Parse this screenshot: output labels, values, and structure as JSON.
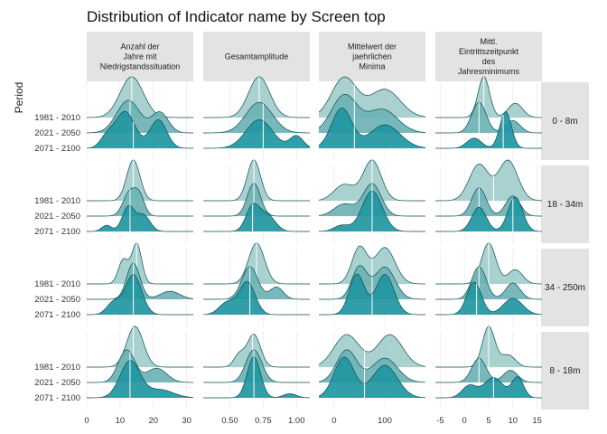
{
  "chart_data": {
    "type": "ridgeline",
    "title": "Distribution of Indicator name by Screen top",
    "ylabel": "Period",
    "periods": [
      "1981 - 2010",
      "2021 - 2050",
      "2071 - 2100"
    ],
    "columns": [
      {
        "name": "Anzahl der Jahre mit Niedrigstandssituation",
        "strip_lines": [
          "Anzahl der",
          "Jahre mit",
          "Niedrigstandssituation"
        ],
        "xlim": [
          0,
          32
        ],
        "ticks": [
          0,
          10,
          20,
          30
        ],
        "tick_labels": [
          "0",
          "10",
          "20",
          "30"
        ]
      },
      {
        "name": "Gesamtamplitude",
        "strip_lines": [
          "Gesamtamplitude"
        ],
        "xlim": [
          0.3,
          1.1
        ],
        "ticks": [
          0.5,
          0.75,
          1.0
        ],
        "tick_labels": [
          "0.50",
          "0.75",
          "1.00"
        ]
      },
      {
        "name": "Mittelwert der jaehrlichen Minima",
        "strip_lines": [
          "Mittelwert der",
          "jaehrlichen",
          "Minima"
        ],
        "xlim": [
          -30,
          180
        ],
        "ticks": [
          0,
          100
        ],
        "tick_labels": [
          "0",
          "100"
        ]
      },
      {
        "name": "Mittl. Eintrittszeitpunkt des Jahresminimums",
        "strip_lines": [
          "Mittl.",
          "Eintrittszeitpunkt",
          "des",
          "Jahresminimums"
        ],
        "xlim": [
          -6,
          16
        ],
        "ticks": [
          -5,
          0,
          5,
          10,
          15
        ],
        "tick_labels": [
          "-5",
          "0",
          "5",
          "10",
          "15"
        ]
      }
    ],
    "rows": [
      {
        "name": "0 - 8m"
      },
      {
        "name": "18 - 34m"
      },
      {
        "name": "34 - 250m"
      },
      {
        "name": "8 - 18m"
      }
    ],
    "colors": {
      "1981 - 2010": "#a2cdcc",
      "2021 - 2050": "#6cb2b4",
      "2071 - 2100": "#2196a1",
      "outline": "#0d4d55",
      "strip_bg": "#e3e3e3",
      "grid": "#ebebeb",
      "median_line": "#ffffff"
    },
    "densities": [
      [
        [
          {
            "median": 13.5,
            "comps": [
              [
                13.5,
                3.5,
                1.0
              ]
            ]
          },
          {
            "median": 13.0,
            "comps": [
              [
                12.5,
                3.5,
                0.8
              ],
              [
                22.0,
                2.5,
                0.5
              ]
            ]
          },
          {
            "median": 14.0,
            "comps": [
              [
                11.5,
                3.0,
                0.9
              ],
              [
                21.5,
                2.5,
                0.7
              ],
              [
                6.0,
                2.0,
                0.25
              ]
            ]
          }
        ],
        [
          {
            "median": 0.72,
            "comps": [
              [
                0.72,
                0.08,
                1.0
              ]
            ]
          },
          {
            "median": 0.75,
            "comps": [
              [
                0.72,
                0.1,
                0.75
              ]
            ]
          },
          {
            "median": 0.75,
            "comps": [
              [
                0.72,
                0.1,
                0.7
              ],
              [
                1.0,
                0.05,
                0.3
              ]
            ]
          }
        ],
        [
          {
            "median": 40,
            "comps": [
              [
                20,
                25,
                0.85
              ],
              [
                100,
                30,
                0.6
              ]
            ]
          },
          {
            "median": 40,
            "comps": [
              [
                20,
                25,
                0.8
              ],
              [
                95,
                30,
                0.5
              ]
            ]
          },
          {
            "median": 40,
            "comps": [
              [
                15,
                20,
                0.85
              ],
              [
                100,
                30,
                0.5
              ]
            ]
          }
        ],
        [
          {
            "median": 4.0,
            "comps": [
              [
                4.0,
                1.2,
                1.0
              ],
              [
                10.5,
                1.5,
                0.35
              ]
            ]
          },
          {
            "median": 3.0,
            "comps": [
              [
                3.0,
                1.5,
                0.75
              ],
              [
                10.0,
                1.5,
                0.3
              ]
            ]
          },
          {
            "median": 8.0,
            "comps": [
              [
                8.5,
                1.2,
                0.9
              ],
              [
                2.0,
                1.5,
                0.25
              ]
            ]
          }
        ]
      ],
      [
        [
          {
            "median": 14.0,
            "comps": [
              [
                14.0,
                2.0,
                1.0
              ]
            ]
          },
          {
            "median": 13.0,
            "comps": [
              [
                13.0,
                2.0,
                0.6
              ],
              [
                16.0,
                1.5,
                0.4
              ]
            ]
          },
          {
            "median": 13.0,
            "comps": [
              [
                12.5,
                1.8,
                0.6
              ],
              [
                17.0,
                2.0,
                0.4
              ],
              [
                6.0,
                1.5,
                0.15
              ]
            ]
          }
        ],
        [
          {
            "median": 0.68,
            "comps": [
              [
                0.68,
                0.05,
                1.0
              ]
            ]
          },
          {
            "median": 0.68,
            "comps": [
              [
                0.68,
                0.05,
                0.8
              ]
            ]
          },
          {
            "median": 0.67,
            "comps": [
              [
                0.67,
                0.05,
                0.6
              ],
              [
                0.78,
                0.06,
                0.4
              ]
            ]
          }
        ],
        [
          {
            "median": 75,
            "comps": [
              [
                75,
                18,
                1.0
              ],
              [
                20,
                20,
                0.4
              ]
            ]
          },
          {
            "median": 75,
            "comps": [
              [
                75,
                18,
                0.8
              ],
              [
                20,
                20,
                0.3
              ]
            ]
          },
          {
            "median": 75,
            "comps": [
              [
                75,
                20,
                1.0
              ],
              [
                15,
                15,
                0.15
              ]
            ]
          }
        ],
        [
          {
            "median": 6.0,
            "comps": [
              [
                3.0,
                2.0,
                0.9
              ],
              [
                9.0,
                2.0,
                1.0
              ]
            ]
          },
          {
            "median": 3.0,
            "comps": [
              [
                3.0,
                1.5,
                0.7
              ],
              [
                10.0,
                1.5,
                0.5
              ]
            ]
          },
          {
            "median": 10.0,
            "comps": [
              [
                10.5,
                1.5,
                0.85
              ],
              [
                3.0,
                1.5,
                0.6
              ]
            ]
          }
        ]
      ],
      [
        [
          {
            "median": 15.0,
            "comps": [
              [
                15.0,
                1.5,
                1.0
              ],
              [
                11.0,
                1.5,
                0.6
              ]
            ]
          },
          {
            "median": 14.0,
            "comps": [
              [
                14.0,
                2.0,
                0.9
              ],
              [
                25.0,
                3.0,
                0.2
              ]
            ]
          },
          {
            "median": 14.0,
            "comps": [
              [
                14.0,
                2.5,
                1.0
              ],
              [
                8.0,
                2.0,
                0.3
              ]
            ]
          }
        ],
        [
          {
            "median": 0.7,
            "comps": [
              [
                0.7,
                0.06,
                1.0
              ]
            ]
          },
          {
            "median": 0.65,
            "comps": [
              [
                0.65,
                0.06,
                0.8
              ],
              [
                0.85,
                0.05,
                0.3
              ]
            ]
          },
          {
            "median": 0.65,
            "comps": [
              [
                0.63,
                0.06,
                0.8
              ],
              [
                0.48,
                0.06,
                0.3
              ]
            ]
          }
        ],
        [
          {
            "median": 75,
            "comps": [
              [
                50,
                15,
                0.9
              ],
              [
                100,
                20,
                0.9
              ]
            ]
          },
          {
            "median": 75,
            "comps": [
              [
                50,
                15,
                0.8
              ],
              [
                100,
                20,
                0.8
              ]
            ]
          },
          {
            "median": 75,
            "comps": [
              [
                45,
                15,
                1.0
              ],
              [
                100,
                18,
                1.0
              ]
            ]
          }
        ],
        [
          {
            "median": 5.0,
            "comps": [
              [
                5.0,
                1.5,
                1.0
              ],
              [
                10.5,
                1.5,
                0.35
              ]
            ]
          },
          {
            "median": 3.0,
            "comps": [
              [
                3.0,
                1.5,
                0.8
              ],
              [
                10.0,
                1.5,
                0.4
              ]
            ]
          },
          {
            "median": 2.5,
            "comps": [
              [
                2.0,
                1.5,
                0.8
              ],
              [
                10.0,
                2.0,
                0.4
              ]
            ]
          }
        ]
      ],
      [
        [
          {
            "median": 14.0,
            "comps": [
              [
                14.5,
                2.5,
                1.0
              ]
            ]
          },
          {
            "median": 13.0,
            "comps": [
              [
                12.0,
                2.5,
                0.8
              ],
              [
                21.0,
                3.0,
                0.35
              ]
            ]
          },
          {
            "median": 13.0,
            "comps": [
              [
                13.0,
                3.0,
                0.9
              ],
              [
                22.0,
                4.0,
                0.2
              ]
            ]
          }
        ],
        [
          {
            "median": 0.67,
            "comps": [
              [
                0.68,
                0.05,
                0.8
              ],
              [
                0.57,
                0.04,
                0.3
              ]
            ]
          },
          {
            "median": 0.68,
            "comps": [
              [
                0.68,
                0.06,
                0.8
              ]
            ]
          },
          {
            "median": 0.68,
            "comps": [
              [
                0.68,
                0.05,
                1.0
              ],
              [
                0.95,
                0.05,
                0.1
              ]
            ]
          }
        ],
        [
          {
            "median": 60,
            "comps": [
              [
                25,
                25,
                0.8
              ],
              [
                110,
                25,
                0.8
              ]
            ]
          },
          {
            "median": 60,
            "comps": [
              [
                25,
                20,
                0.8
              ],
              [
                100,
                25,
                0.6
              ]
            ]
          },
          {
            "median": 60,
            "comps": [
              [
                20,
                20,
                1.0
              ],
              [
                100,
                25,
                0.8
              ]
            ]
          }
        ],
        [
          {
            "median": 5.0,
            "comps": [
              [
                5.0,
                1.3,
                1.0
              ],
              [
                9.0,
                1.5,
                0.3
              ]
            ]
          },
          {
            "median": 3.0,
            "comps": [
              [
                3.0,
                1.5,
                0.6
              ],
              [
                9.5,
                1.5,
                0.3
              ]
            ]
          },
          {
            "median": 6.0,
            "comps": [
              [
                6.0,
                2.0,
                0.5
              ],
              [
                11.0,
                1.2,
                0.5
              ],
              [
                1.0,
                1.5,
                0.3
              ]
            ]
          }
        ]
      ]
    ]
  }
}
